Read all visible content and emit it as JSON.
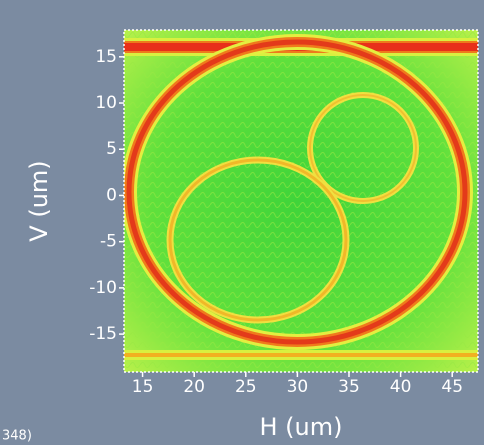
{
  "chart_data": {
    "type": "heatmap",
    "x_label": "H (um)",
    "y_label": "V (um)",
    "xlim": [
      13.2,
      47.5
    ],
    "xticks": [
      15,
      20,
      25,
      30,
      35,
      40,
      45
    ],
    "ylim": [
      -19.1,
      17.9
    ],
    "yticks": [
      15,
      10,
      5,
      0,
      -5,
      -10,
      -15
    ],
    "corner_text": "348)"
  }
}
